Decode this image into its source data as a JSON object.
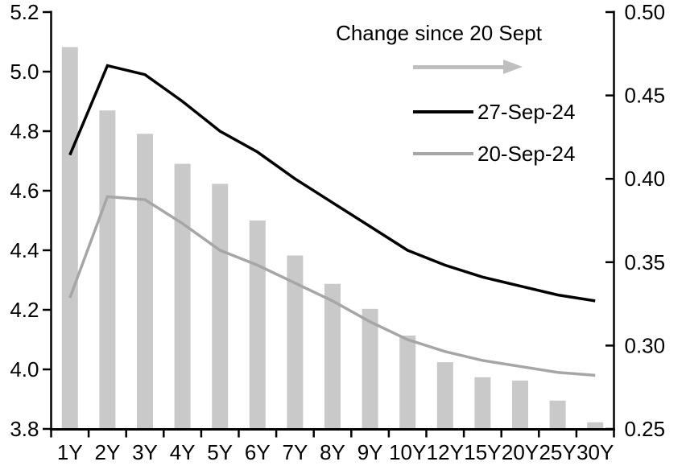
{
  "chart_data": {
    "type": "bar",
    "combo": "bars on right axis, two lines on left axis",
    "title": "",
    "categories": [
      "1Y",
      "2Y",
      "3Y",
      "4Y",
      "5Y",
      "6Y",
      "7Y",
      "8Y",
      "9Y",
      "10Y",
      "12Y",
      "15Y",
      "20Y",
      "25Y",
      "30Y"
    ],
    "series": [
      {
        "name": "Change since 20 Sept",
        "type": "bar",
        "axis": "right",
        "color": "#c9c9c9",
        "values": [
          0.479,
          0.441,
          0.427,
          0.409,
          0.397,
          0.375,
          0.354,
          0.337,
          0.322,
          0.306,
          0.29,
          0.281,
          0.279,
          0.267,
          0.254
        ]
      },
      {
        "name": "27-Sep-24",
        "type": "line",
        "axis": "left",
        "color": "#000000",
        "values": [
          4.72,
          5.02,
          4.99,
          4.9,
          4.8,
          4.73,
          4.64,
          4.56,
          4.48,
          4.4,
          4.35,
          4.31,
          4.28,
          4.25,
          4.23
        ]
      },
      {
        "name": "20-Sep-24",
        "type": "line",
        "axis": "left",
        "color": "#a6a6a6",
        "values": [
          4.24,
          4.58,
          4.57,
          4.49,
          4.4,
          4.35,
          4.29,
          4.23,
          4.16,
          4.1,
          4.06,
          4.03,
          4.01,
          3.99,
          3.98
        ]
      }
    ],
    "left_axis": {
      "min": 3.8,
      "max": 5.2,
      "tick_step": 0.2,
      "tick_labels": [
        "5.2",
        "5.0",
        "4.8",
        "4.6",
        "4.4",
        "4.2",
        "4.0",
        "3.8"
      ]
    },
    "right_axis": {
      "min": 0.25,
      "max": 0.5,
      "tick_step": 0.05,
      "tick_labels": [
        "0.50",
        "0.45",
        "0.40",
        "0.35",
        "0.30",
        "0.25"
      ]
    },
    "grid": false,
    "legend": {
      "position": "inside-top-right",
      "arrow_color": "#bfbfbf",
      "entries": [
        "Change since 20 Sept",
        "27-Sep-24",
        "20-Sep-24"
      ]
    },
    "colors": {
      "axis": "#000000",
      "text": "#000000",
      "background": "#ffffff"
    }
  }
}
